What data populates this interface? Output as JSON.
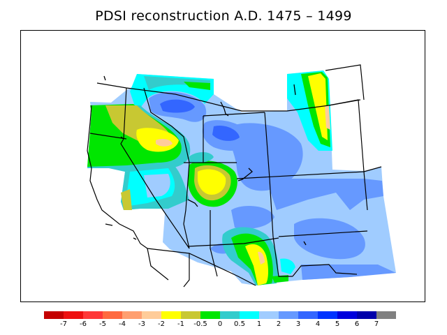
{
  "title": "PDSI reconstruction A.D. 1475 – 1499",
  "legend": {
    "colors": [
      "#c40000",
      "#ee1010",
      "#ff3838",
      "#ff6a40",
      "#ff9f70",
      "#ffcc99",
      "#ffff00",
      "#c8c832",
      "#00e600",
      "#33cccc",
      "#00ffff",
      "#a0ccff",
      "#6699ff",
      "#3366ff",
      "#0033ff",
      "#0000dd",
      "#0000aa",
      "#808080"
    ],
    "labels": [
      "-7",
      "-6",
      "-5",
      "-4",
      "-3",
      "-2",
      "-1",
      "-0.5",
      "0",
      "0.5",
      "1",
      "2",
      "3",
      "4",
      "5",
      "6",
      "7"
    ]
  }
}
